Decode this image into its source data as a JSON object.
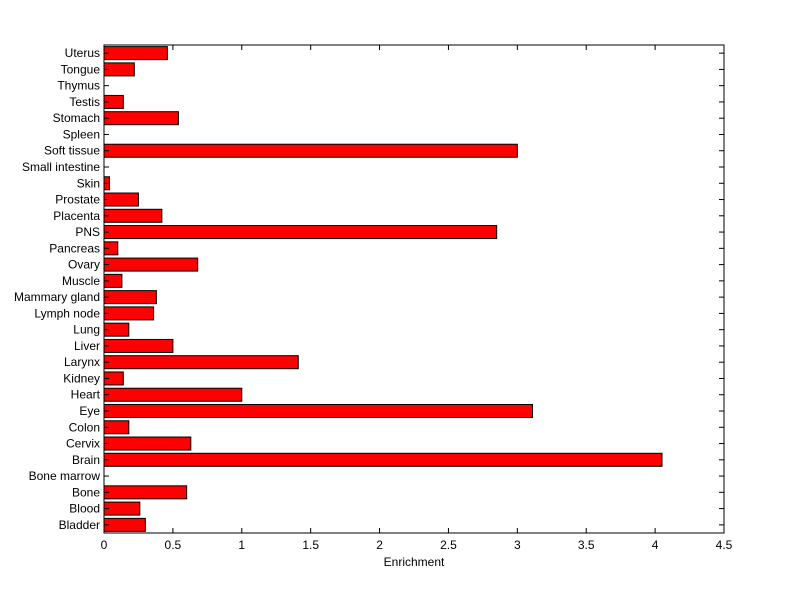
{
  "chart_data": {
    "type": "bar",
    "orientation": "horizontal",
    "title": "",
    "xlabel": "Enrichment",
    "ylabel": "",
    "xlim": [
      0,
      4.5
    ],
    "xticks": [
      "0",
      "0.5",
      "1",
      "1.5",
      "2",
      "2.5",
      "3",
      "3.5",
      "4",
      "4.5"
    ],
    "grid": false,
    "legend": "none",
    "bar_color": "#ff0000",
    "edge_color": "#000000",
    "categories": [
      "Bladder",
      "Blood",
      "Bone",
      "Bone marrow",
      "Brain",
      "Cervix",
      "Colon",
      "Eye",
      "Heart",
      "Kidney",
      "Larynx",
      "Liver",
      "Lung",
      "Lymph node",
      "Mammary gland",
      "Muscle",
      "Ovary",
      "Pancreas",
      "PNS",
      "Placenta",
      "Prostate",
      "Skin",
      "Small intestine",
      "Soft tissue",
      "Spleen",
      "Stomach",
      "Testis",
      "Thymus",
      "Tongue",
      "Uterus"
    ],
    "values": [
      0.3,
      0.26,
      0.6,
      0,
      4.05,
      0.63,
      0.18,
      3.11,
      1.0,
      0.14,
      1.41,
      0.5,
      0.18,
      0.36,
      0.38,
      0.13,
      0.68,
      0.1,
      2.85,
      0.42,
      0.25,
      0.04,
      0,
      3.0,
      0,
      0.54,
      0.14,
      0,
      0.22,
      0.46
    ]
  }
}
